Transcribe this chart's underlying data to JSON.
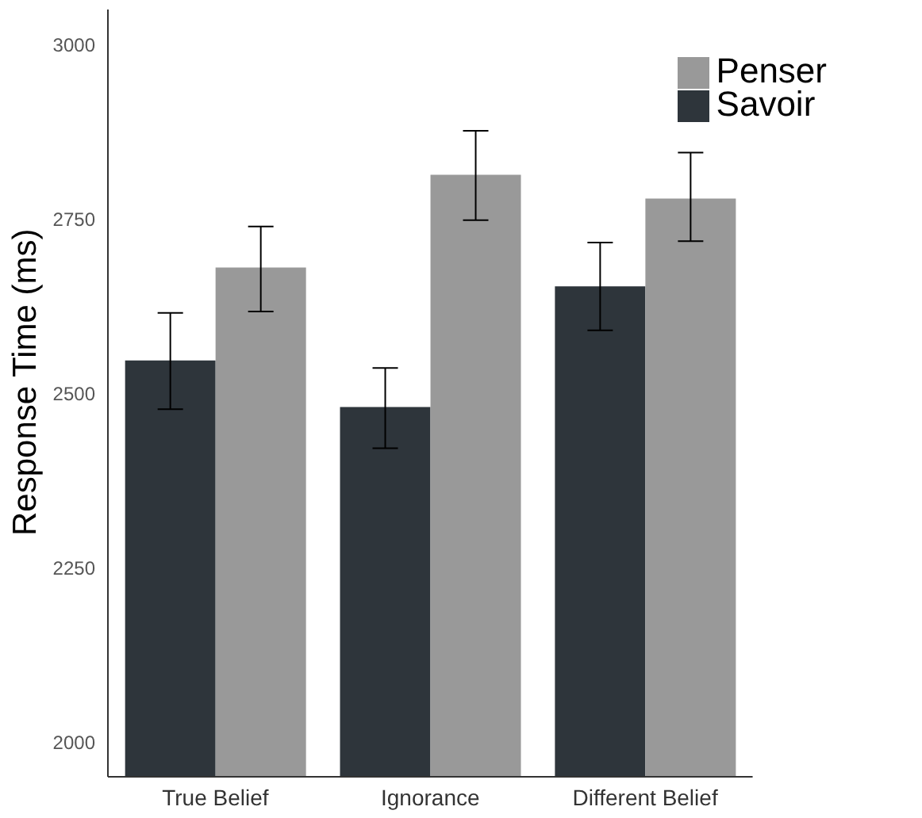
{
  "chart_data": {
    "type": "bar",
    "ylabel": "Response Time (ms)",
    "categories": [
      "True Belief",
      "Ignorance",
      "Different Belief"
    ],
    "series": [
      {
        "name": "Savoir",
        "color": "#2e353b",
        "values": [
          2547,
          2480,
          2653
        ],
        "errors": [
          [
            2477,
            2615
          ],
          [
            2421,
            2536
          ],
          [
            2590,
            2716
          ]
        ]
      },
      {
        "name": "Penser",
        "color": "#999999",
        "values": [
          2680,
          2813,
          2779
        ],
        "errors": [
          [
            2617,
            2739
          ],
          [
            2748,
            2876
          ],
          [
            2718,
            2845
          ]
        ]
      }
    ],
    "ylim": [
      1950,
      3050
    ],
    "yticks": [
      2000,
      2250,
      2500,
      2750,
      3000
    ],
    "grid": false,
    "legend": "top right"
  }
}
